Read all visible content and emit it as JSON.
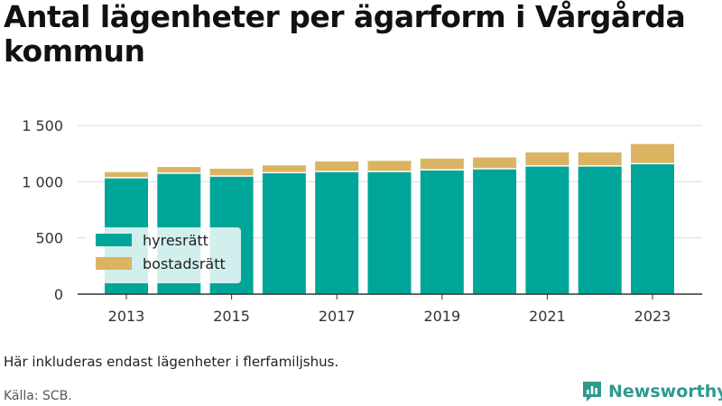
{
  "title": "Antal lägenheter per ägarform i Vårgårda kommun",
  "note": "Här inkluderas endast lägenheter i flerfamiljshus.",
  "source": "Källa: SCB.",
  "brand": {
    "name": "Newsworthy",
    "icon": "newsworthy-logo-icon",
    "color": "#2e9a8d"
  },
  "chart_data": {
    "type": "bar",
    "stacked": true,
    "categories": [
      "2013",
      "2014",
      "2015",
      "2016",
      "2017",
      "2018",
      "2019",
      "2020",
      "2021",
      "2022",
      "2023"
    ],
    "x_tick_labels": [
      "2013",
      "",
      "2015",
      "",
      "2017",
      "",
      "2019",
      "",
      "2021",
      "",
      "2023"
    ],
    "series": [
      {
        "name": "hyresrätt",
        "color": "#00a599",
        "values": [
          1035,
          1075,
          1050,
          1080,
          1090,
          1090,
          1105,
          1115,
          1140,
          1140,
          1160
        ]
      },
      {
        "name": "bostadsrätt",
        "color": "#dbb462",
        "values": [
          50,
          55,
          65,
          65,
          90,
          95,
          100,
          100,
          120,
          120,
          175
        ]
      }
    ],
    "y_ticks": [
      0,
      500,
      1000,
      1500
    ],
    "y_tick_labels": [
      "0",
      "500",
      "1 000",
      "1 500"
    ],
    "ylim": [
      0,
      1500
    ],
    "grid": true,
    "legend_position": "bottom-left"
  }
}
